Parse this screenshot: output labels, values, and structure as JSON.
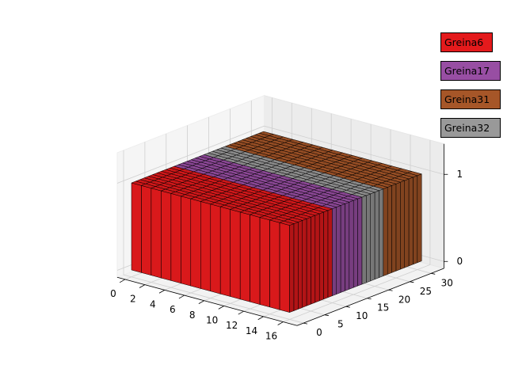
{
  "chart_data": {
    "type": "bar3d",
    "title": "",
    "xlabel": "",
    "ylabel": "",
    "zlabel": "",
    "x": {
      "ticks": [
        0,
        2,
        4,
        6,
        8,
        10,
        12,
        14,
        16
      ],
      "lim": [
        0,
        17
      ]
    },
    "y": {
      "ticks": [
        0,
        5,
        10,
        15,
        20,
        25,
        30
      ],
      "lim": [
        0,
        32
      ]
    },
    "z": {
      "ticks": [
        0,
        1
      ],
      "lim": [
        0,
        1
      ]
    },
    "grid": true,
    "legend_placement": "right",
    "bar_height": 1,
    "series": [
      {
        "name": "Greina6",
        "color": "#e41a1c",
        "x_range": [
          0,
          16
        ],
        "y_range": [
          0,
          10
        ],
        "z": 1
      },
      {
        "name": "Greina17",
        "color": "#984ea3",
        "x_range": [
          0,
          16
        ],
        "y_range": [
          10,
          17
        ],
        "z": 1
      },
      {
        "name": "Greina31",
        "color": "#a65628",
        "x_range": [
          0,
          16
        ],
        "y_range": [
          22,
          31
        ],
        "z": 1
      },
      {
        "name": "Greina32",
        "color": "#999999",
        "x_range": [
          0,
          16
        ],
        "y_range": [
          17,
          22
        ],
        "z": 1
      }
    ]
  }
}
